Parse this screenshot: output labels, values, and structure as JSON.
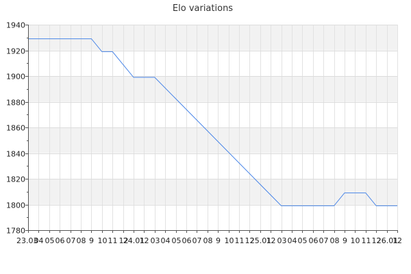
{
  "chart_data": {
    "type": "line",
    "title": "Elo variations",
    "xlabel": "",
    "ylabel": "",
    "ylim": [
      1780,
      1940
    ],
    "yticks": [
      1780,
      1800,
      1820,
      1840,
      1860,
      1880,
      1900,
      1920,
      1940
    ],
    "grid": true,
    "legend": "none",
    "x_tick_labels": [
      "23.03",
      "04",
      "05",
      "06",
      "07",
      "08",
      "9",
      "10",
      "11",
      "12",
      "24.01",
      "12",
      "03",
      "04",
      "05",
      "06",
      "07",
      "08",
      "9",
      "10",
      "11",
      "12",
      "25.01",
      "12",
      "03",
      "04",
      "05",
      "06",
      "07",
      "08",
      "9",
      "10",
      "11",
      "12",
      "26.01",
      "12"
    ],
    "series": [
      {
        "color": "#4a86e8",
        "points": [
          {
            "x": 0,
            "y": 1929
          },
          {
            "x": 6,
            "y": 1929
          },
          {
            "x": 7,
            "y": 1919
          },
          {
            "x": 8,
            "y": 1919
          },
          {
            "x": 10,
            "y": 1899
          },
          {
            "x": 12,
            "y": 1899
          },
          {
            "x": 24,
            "y": 1799
          },
          {
            "x": 29,
            "y": 1799
          },
          {
            "x": 30,
            "y": 1809
          },
          {
            "x": 32,
            "y": 1809
          },
          {
            "x": 33,
            "y": 1799
          },
          {
            "x": 35,
            "y": 1799
          }
        ]
      }
    ]
  }
}
